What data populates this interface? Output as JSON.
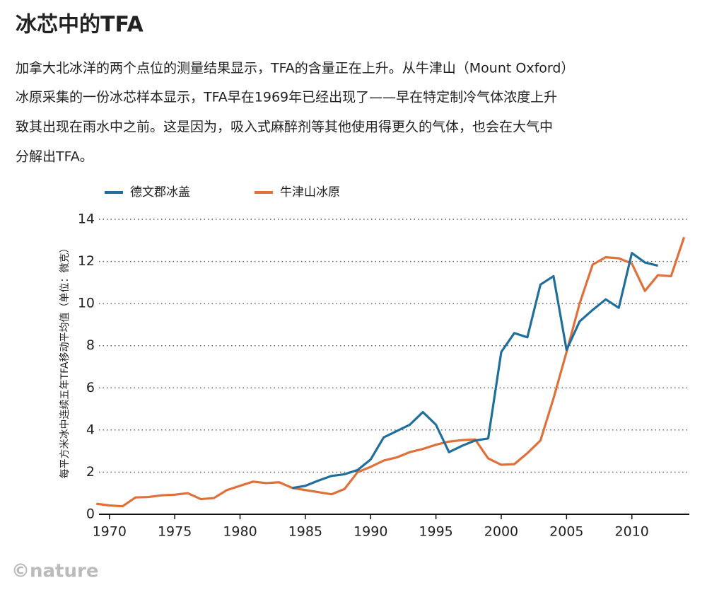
{
  "chart_data": {
    "type": "line",
    "title": "冰芯中的TFA",
    "subtitle": [
      "加拿大北冰洋的两个点位的测量结果显示，TFA的含量正在上升。从牛津山（Mount Oxford）",
      "冰原采集的一份冰芯样本显示，TFA早在1969年已经出现了——早在特定制冷气体浓度上升",
      "致其出现在雨水中之前。这是因为，吸入式麻醉剂等其他使用得更久的气体，也会在大气中",
      "分解出TFA。"
    ],
    "y_label": "每平方米冰中连续五年TFA移动平均值（单位：微克）",
    "source": "©nature",
    "x": [
      1969,
      1970,
      1971,
      1972,
      1973,
      1974,
      1975,
      1976,
      1977,
      1978,
      1979,
      1980,
      1981,
      1982,
      1983,
      1984,
      1985,
      1986,
      1987,
      1988,
      1989,
      1990,
      1991,
      1992,
      1993,
      1994,
      1995,
      1996,
      1997,
      1998,
      1999,
      2000,
      2001,
      2002,
      2003,
      2004,
      2005,
      2006,
      2007,
      2008,
      2009,
      2010,
      2011,
      2012,
      2013,
      2014
    ],
    "series": [
      {
        "name": "德文郡冰盖",
        "color": "#1f6e9c",
        "values": [
          null,
          null,
          null,
          null,
          null,
          null,
          null,
          null,
          null,
          null,
          null,
          null,
          null,
          null,
          null,
          1.25,
          1.35,
          1.6,
          1.82,
          1.9,
          2.1,
          2.6,
          3.65,
          3.95,
          4.25,
          4.85,
          4.25,
          2.95,
          3.25,
          3.5,
          3.6,
          7.7,
          8.6,
          8.4,
          10.9,
          11.3,
          7.8,
          9.15,
          9.7,
          10.2,
          9.8,
          12.4,
          11.95,
          11.8,
          null,
          null
        ]
      },
      {
        "name": "牛津山冰原",
        "color": "#e0703a",
        "values": [
          0.5,
          0.42,
          0.38,
          0.8,
          0.82,
          0.9,
          0.93,
          1.0,
          0.72,
          0.77,
          1.15,
          1.35,
          1.55,
          1.48,
          1.52,
          1.25,
          1.15,
          1.05,
          0.95,
          1.2,
          2.0,
          2.25,
          2.55,
          2.7,
          2.95,
          3.1,
          3.3,
          3.45,
          3.52,
          3.55,
          2.65,
          2.35,
          2.38,
          2.9,
          3.5,
          5.5,
          7.7,
          10.0,
          11.85,
          12.2,
          12.15,
          11.9,
          10.6,
          11.35,
          11.3,
          13.15
        ]
      }
    ],
    "xlim": [
      1969.2,
      2014.4
    ],
    "xticks": [
      1970,
      1975,
      1980,
      1985,
      1990,
      1995,
      2000,
      2005,
      2010
    ],
    "ylim": [
      0,
      14
    ],
    "yticks": [
      0,
      2,
      4,
      6,
      8,
      10,
      12,
      14
    ],
    "grid": true
  }
}
